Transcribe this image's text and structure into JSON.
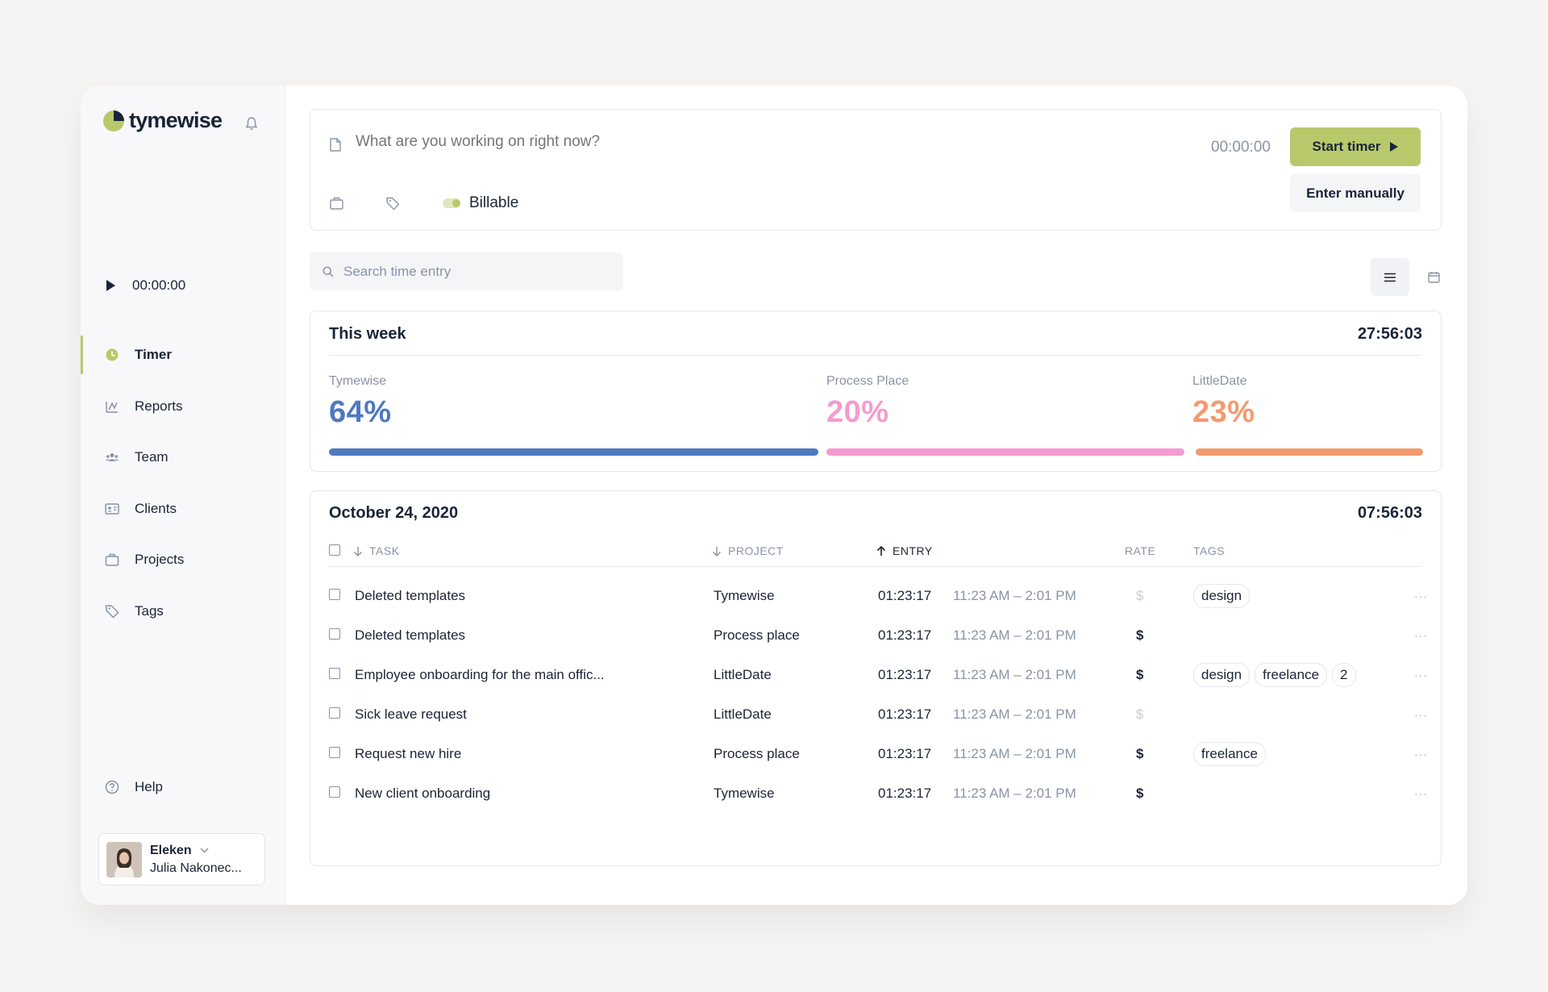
{
  "app": {
    "name": "tymewise"
  },
  "sidebar": {
    "timer_value": "00:00:00",
    "nav": [
      {
        "label": "Timer",
        "icon": "clock-icon",
        "active": true
      },
      {
        "label": "Reports",
        "icon": "reports-icon"
      },
      {
        "label": "Team",
        "icon": "team-icon"
      },
      {
        "label": "Clients",
        "icon": "clients-icon"
      },
      {
        "label": "Projects",
        "icon": "briefcase-icon"
      },
      {
        "label": "Tags",
        "icon": "tag-icon"
      }
    ],
    "help_label": "Help",
    "user": {
      "org": "Eleken",
      "name": "Julia Nakonec..."
    }
  },
  "entry": {
    "placeholder": "What are you working on right now?",
    "time": "00:00:00",
    "start_label": "Start timer",
    "manual_label": "Enter manually",
    "billable_label": "Billable"
  },
  "search": {
    "placeholder": "Search time entry"
  },
  "week": {
    "title": "This week",
    "total": "27:56:03",
    "projects": [
      {
        "name": "Tymewise",
        "pct": "64%",
        "share": 0.64,
        "color": "#4e79c0"
      },
      {
        "name": "Process Place",
        "pct": "20%",
        "share": 0.2,
        "color": "#f59bd0"
      },
      {
        "name": "LittleDate",
        "pct": "23%",
        "share": 0.23,
        "color": "#f29b6e"
      }
    ]
  },
  "day": {
    "title": "October 24, 2020",
    "total": "07:56:03",
    "headers": {
      "task": "TASK",
      "project": "PROJECT",
      "entry": "ENTRY",
      "rate": "RATE",
      "tags": "TAGS"
    },
    "rows": [
      {
        "task": "Deleted templates",
        "project": "Tymewise",
        "duration": "01:23:17",
        "range": "11:23 AM – 2:01 PM",
        "rate": "$",
        "billable": false,
        "tags": [
          "design"
        ]
      },
      {
        "task": "Deleted templates",
        "project": "Process place",
        "duration": "01:23:17",
        "range": "11:23 AM – 2:01 PM",
        "rate": "$",
        "billable": true,
        "tags": []
      },
      {
        "task": "Employee onboarding for the main offic...",
        "project": "LittleDate",
        "duration": "01:23:17",
        "range": "11:23 AM – 2:01 PM",
        "rate": "$",
        "billable": true,
        "tags": [
          "design",
          "freelance",
          "2"
        ]
      },
      {
        "task": "Sick leave request",
        "project": "LittleDate",
        "duration": "01:23:17",
        "range": "11:23 AM – 2:01 PM",
        "rate": "$",
        "billable": false,
        "tags": []
      },
      {
        "task": "Request new hire",
        "project": "Process place",
        "duration": "01:23:17",
        "range": "11:23 AM – 2:01 PM",
        "rate": "$",
        "billable": true,
        "tags": [
          "freelance"
        ]
      },
      {
        "task": "New client onboarding",
        "project": "Tymewise",
        "duration": "01:23:17",
        "range": "11:23 AM – 2:01 PM",
        "rate": "$",
        "billable": true,
        "tags": []
      }
    ],
    "more_label": "···"
  }
}
